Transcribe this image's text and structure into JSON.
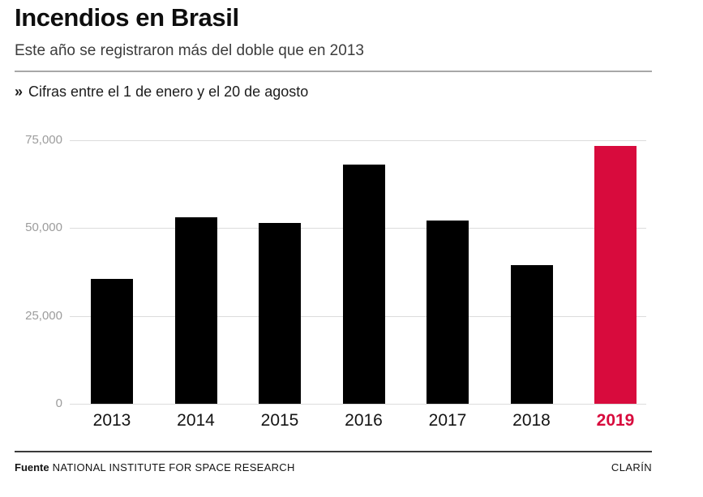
{
  "header": {
    "title": "Incendios en Brasil",
    "subtitle": "Este año se registraron más del doble que en 2013"
  },
  "note": {
    "bullet": "»",
    "text": "Cifras entre el 1 de enero y el 20 de agosto"
  },
  "chart_data": {
    "type": "bar",
    "title": "Incendios en Brasil",
    "xlabel": "",
    "ylabel": "",
    "categories": [
      "2013",
      "2014",
      "2015",
      "2016",
      "2017",
      "2018",
      "2019"
    ],
    "values": [
      35500,
      53000,
      51500,
      68000,
      52250,
      39500,
      73500
    ],
    "ylim": [
      0,
      75000
    ],
    "yticks": [
      0,
      25000,
      50000,
      75000
    ],
    "ytick_labels": [
      "0",
      "25,000",
      "50,000",
      "75,000"
    ],
    "grid": true,
    "legend": false,
    "bar_color": "#000000",
    "highlight": {
      "index": 6,
      "color": "#d80b3d",
      "label_color": "#d80b3d"
    }
  },
  "footer": {
    "source_label": "Fuente",
    "source_name": "NATIONAL INSTITUTE FOR SPACE RESEARCH",
    "brand": "CLARÍN"
  },
  "colors": {
    "accent": "#d80b3d",
    "bar": "#000000",
    "gridline": "#dcdcdc",
    "axis_label": "#9c9c9c",
    "text": "#141414"
  }
}
